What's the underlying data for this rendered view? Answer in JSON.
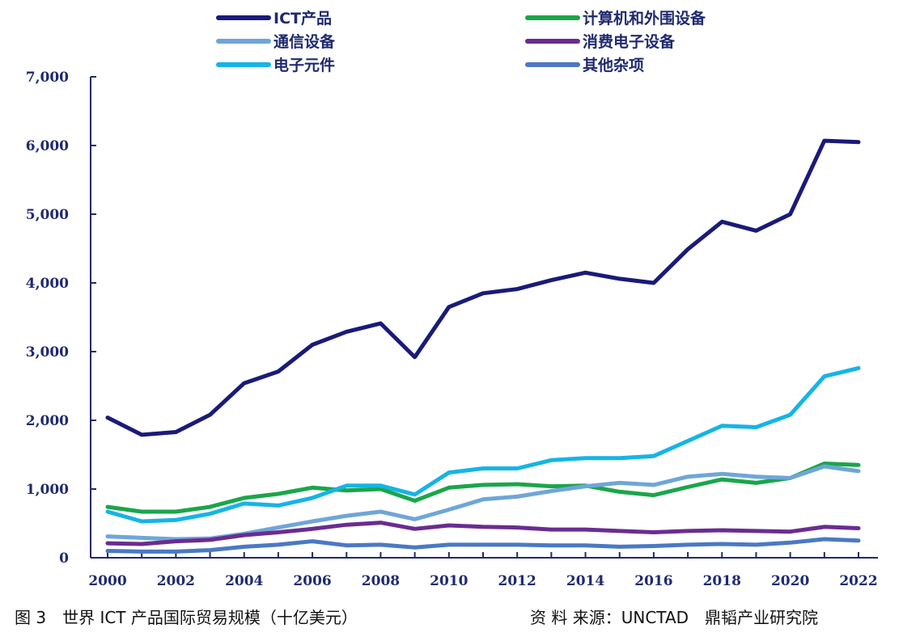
{
  "caption": "图 3　世界 ICT 产品国际贸易规模（十亿美元）",
  "source": "资 料 来源：UNCTAD　鼎韬产业研究院",
  "chart_data": {
    "type": "line",
    "title": "",
    "xlabel": "",
    "ylabel": "",
    "ylim": [
      0,
      7000
    ],
    "yticks": [
      0,
      1000,
      2000,
      3000,
      4000,
      5000,
      6000,
      7000
    ],
    "ytick_labels": [
      "0",
      "1,000",
      "2,000",
      "3,000",
      "4,000",
      "5,000",
      "6,000",
      "7,000"
    ],
    "xtick_labels": [
      "2000",
      "2002",
      "2004",
      "2006",
      "2008",
      "2010",
      "2012",
      "2014",
      "2016",
      "2018",
      "2020",
      "2022"
    ],
    "x": [
      2000,
      2001,
      2002,
      2003,
      2004,
      2005,
      2006,
      2007,
      2008,
      2009,
      2010,
      2011,
      2012,
      2013,
      2014,
      2015,
      2016,
      2017,
      2018,
      2019,
      2020,
      2021,
      2022
    ],
    "legend_position": "top",
    "grid": false,
    "series": [
      {
        "name": "ICT产品",
        "color": "#1a1a7a",
        "values": [
          2040,
          1790,
          1830,
          2080,
          2540,
          2710,
          3100,
          3290,
          3410,
          2920,
          3650,
          3850,
          3910,
          4040,
          4150,
          4060,
          4000,
          4490,
          4890,
          4760,
          5000,
          6070,
          6050
        ]
      },
      {
        "name": "计算机和外围设备",
        "color": "#1aa64a",
        "values": [
          740,
          670,
          670,
          740,
          870,
          930,
          1020,
          980,
          1000,
          830,
          1020,
          1060,
          1070,
          1040,
          1050,
          960,
          910,
          1030,
          1140,
          1090,
          1160,
          1370,
          1350
        ]
      },
      {
        "name": "通信设备",
        "color": "#6ea6d8",
        "values": [
          310,
          290,
          270,
          280,
          350,
          440,
          530,
          610,
          670,
          560,
          700,
          850,
          890,
          970,
          1040,
          1090,
          1060,
          1180,
          1220,
          1180,
          1160,
          1330,
          1260
        ]
      },
      {
        "name": "消费电子设备",
        "color": "#6a2c91",
        "values": [
          210,
          200,
          240,
          260,
          330,
          370,
          420,
          480,
          510,
          420,
          470,
          450,
          440,
          410,
          410,
          390,
          370,
          390,
          400,
          390,
          380,
          450,
          430
        ]
      },
      {
        "name": "电子元件",
        "color": "#16b4e6",
        "values": [
          670,
          530,
          550,
          640,
          790,
          760,
          870,
          1050,
          1050,
          920,
          1240,
          1300,
          1300,
          1420,
          1450,
          1450,
          1480,
          1700,
          1920,
          1900,
          2080,
          2640,
          2760
        ]
      },
      {
        "name": "其他杂项",
        "color": "#4a79c4",
        "values": [
          100,
          90,
          90,
          110,
          160,
          190,
          240,
          180,
          190,
          150,
          190,
          190,
          190,
          180,
          180,
          160,
          170,
          190,
          200,
          190,
          220,
          270,
          250
        ]
      }
    ]
  }
}
